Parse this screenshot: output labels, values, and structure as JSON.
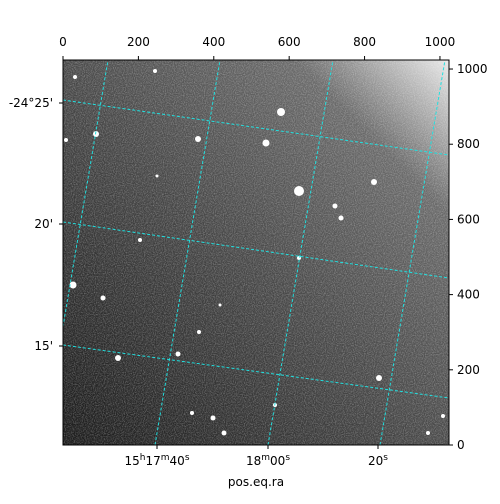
{
  "chart_data": {
    "type": "image",
    "x_label": "pos.eq.ra",
    "xlim": [
      0,
      1024
    ],
    "ylim": [
      0,
      1024
    ],
    "xticks": [
      0,
      200,
      400,
      600,
      800,
      1000
    ],
    "yticks": [
      0,
      200,
      400,
      600,
      800,
      1000
    ],
    "dec_labels": [
      "-24°25'",
      "20'",
      "15'"
    ],
    "ra_labels": [
      "15h17m40s",
      "18m00s",
      "20s"
    ]
  }
}
